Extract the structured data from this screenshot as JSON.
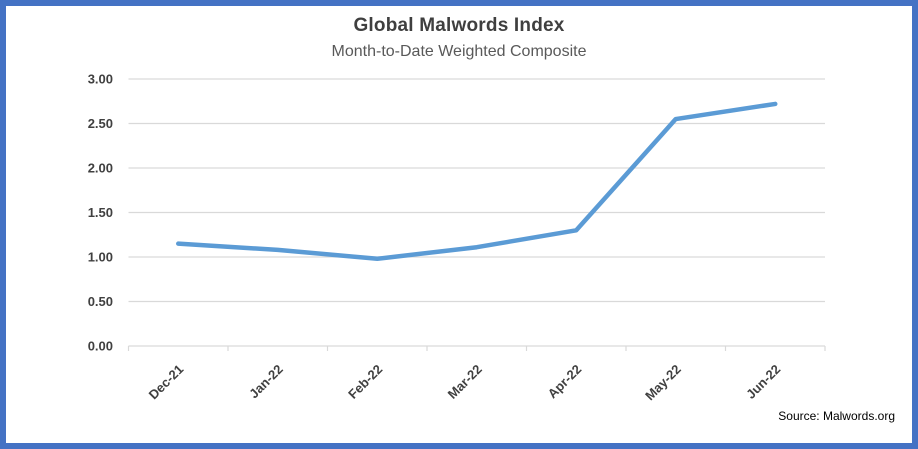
{
  "chart": {
    "title": "Global Malwords Index",
    "subtitle": "Month-to-Date Weighted Composite",
    "source": "Source: Malwords.org"
  },
  "chart_data": {
    "type": "line",
    "title": "Global Malwords Index",
    "subtitle": "Month-to-Date Weighted Composite",
    "categories": [
      "Dec-21",
      "Jan-22",
      "Feb-22",
      "Mar-22",
      "Apr-22",
      "May-22",
      "Jun-22"
    ],
    "series": [
      {
        "name": "Global Malwords Index",
        "values": [
          1.15,
          1.08,
          0.98,
          1.11,
          1.3,
          2.55,
          2.72
        ]
      }
    ],
    "xlabel": "",
    "ylabel": "",
    "ylim": [
      0,
      3
    ],
    "y_tick_step": 0.5,
    "y_tick_labels": [
      "0.00",
      "0.50",
      "1.00",
      "1.50",
      "2.00",
      "2.50",
      "3.00"
    ],
    "x_tick_rotation": -45,
    "grid": true,
    "legend": "none",
    "annotations": [
      "Source: Malwords.org"
    ],
    "colors": {
      "line": "#5B9BD5",
      "gridline": "#D9D9D9",
      "axis_text": "#404040",
      "title_text": "#3F3F3F",
      "subtitle_text": "#595959",
      "source_text": "#000000",
      "frame_border": "#4472C4",
      "background": "#FFFFFF"
    }
  }
}
